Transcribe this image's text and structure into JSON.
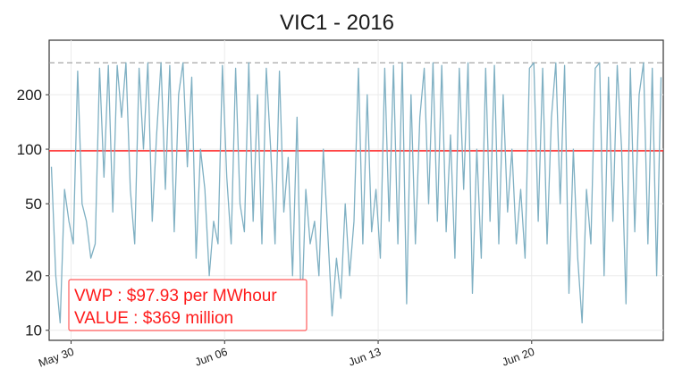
{
  "chart_data": {
    "type": "line",
    "title": "VIC1 - 2016",
    "xlabel": "",
    "ylabel": "",
    "x_range": [
      "2016-05-29",
      "2016-06-26"
    ],
    "x_ticks": [
      {
        "date": "2016-05-30",
        "label": "May 30"
      },
      {
        "date": "2016-06-06",
        "label": "Jun 06"
      },
      {
        "date": "2016-06-13",
        "label": "Jun 13"
      },
      {
        "date": "2016-06-20",
        "label": "Jun 20"
      }
    ],
    "y_scale": "log",
    "ylim": [
      8.8,
      400
    ],
    "y_ticks": [
      10,
      20,
      50,
      100,
      200
    ],
    "grid": true,
    "reference_lines": [
      {
        "kind": "dashed",
        "value": 300,
        "color": "#9e9e9e"
      },
      {
        "kind": "solid",
        "value": 97.93,
        "color": "#ff2a2a"
      }
    ],
    "series": [
      {
        "color": "#7fb0c3",
        "resolution": "half-hourly",
        "points": [
          [
            "2016-05-29",
            80
          ],
          [
            "2016-05-29",
            20
          ],
          [
            "2016-05-29",
            11
          ],
          [
            "2016-05-29",
            60
          ],
          [
            "2016-05-29",
            40
          ],
          [
            "2016-05-30",
            30
          ],
          [
            "2016-05-30",
            270
          ],
          [
            "2016-05-30",
            50
          ],
          [
            "2016-05-30",
            40
          ],
          [
            "2016-05-30",
            25
          ],
          [
            "2016-05-31",
            30
          ],
          [
            "2016-05-31",
            280
          ],
          [
            "2016-05-31",
            70
          ],
          [
            "2016-05-31",
            290
          ],
          [
            "2016-05-31",
            45
          ],
          [
            "2016-06-01",
            290
          ],
          [
            "2016-06-01",
            150
          ],
          [
            "2016-06-01",
            300
          ],
          [
            "2016-06-01",
            60
          ],
          [
            "2016-06-01",
            30
          ],
          [
            "2016-06-02",
            280
          ],
          [
            "2016-06-02",
            100
          ],
          [
            "2016-06-02",
            300
          ],
          [
            "2016-06-02",
            40
          ],
          [
            "2016-06-02",
            120
          ],
          [
            "2016-06-03",
            300
          ],
          [
            "2016-06-03",
            60
          ],
          [
            "2016-06-03",
            290
          ],
          [
            "2016-06-03",
            35
          ],
          [
            "2016-06-03",
            200
          ],
          [
            "2016-06-04",
            300
          ],
          [
            "2016-06-04",
            80
          ],
          [
            "2016-06-04",
            250
          ],
          [
            "2016-06-04",
            25
          ],
          [
            "2016-06-04",
            100
          ],
          [
            "2016-06-05",
            60
          ],
          [
            "2016-06-05",
            20
          ],
          [
            "2016-06-05",
            40
          ],
          [
            "2016-06-05",
            30
          ],
          [
            "2016-06-05",
            290
          ],
          [
            "2016-06-06",
            70
          ],
          [
            "2016-06-06",
            30
          ],
          [
            "2016-06-06",
            280
          ],
          [
            "2016-06-06",
            50
          ],
          [
            "2016-06-06",
            35
          ],
          [
            "2016-06-07",
            300
          ],
          [
            "2016-06-07",
            40
          ],
          [
            "2016-06-07",
            200
          ],
          [
            "2016-06-07",
            30
          ],
          [
            "2016-06-07",
            280
          ],
          [
            "2016-06-08",
            100
          ],
          [
            "2016-06-08",
            30
          ],
          [
            "2016-06-08",
            270
          ],
          [
            "2016-06-08",
            45
          ],
          [
            "2016-06-08",
            90
          ],
          [
            "2016-06-09",
            20
          ],
          [
            "2016-06-09",
            150
          ],
          [
            "2016-06-09",
            11
          ],
          [
            "2016-06-09",
            60
          ],
          [
            "2016-06-09",
            30
          ],
          [
            "2016-06-10",
            40
          ],
          [
            "2016-06-10",
            20
          ],
          [
            "2016-06-10",
            100
          ],
          [
            "2016-06-10",
            35
          ],
          [
            "2016-06-10",
            12
          ],
          [
            "2016-06-11",
            25
          ],
          [
            "2016-06-11",
            15
          ],
          [
            "2016-06-11",
            50
          ],
          [
            "2016-06-11",
            20
          ],
          [
            "2016-06-11",
            40
          ],
          [
            "2016-06-12",
            280
          ],
          [
            "2016-06-12",
            30
          ],
          [
            "2016-06-12",
            200
          ],
          [
            "2016-06-12",
            35
          ],
          [
            "2016-06-12",
            60
          ],
          [
            "2016-06-13",
            25
          ],
          [
            "2016-06-13",
            280
          ],
          [
            "2016-06-13",
            40
          ],
          [
            "2016-06-13",
            290
          ],
          [
            "2016-06-13",
            30
          ],
          [
            "2016-06-14",
            300
          ],
          [
            "2016-06-14",
            14
          ],
          [
            "2016-06-14",
            200
          ],
          [
            "2016-06-14",
            30
          ],
          [
            "2016-06-14",
            150
          ],
          [
            "2016-06-15",
            280
          ],
          [
            "2016-06-15",
            50
          ],
          [
            "2016-06-15",
            300
          ],
          [
            "2016-06-15",
            40
          ],
          [
            "2016-06-15",
            290
          ],
          [
            "2016-06-16",
            35
          ],
          [
            "2016-06-16",
            120
          ],
          [
            "2016-06-16",
            25
          ],
          [
            "2016-06-16",
            280
          ],
          [
            "2016-06-16",
            60
          ],
          [
            "2016-06-17",
            300
          ],
          [
            "2016-06-17",
            16
          ],
          [
            "2016-06-17",
            100
          ],
          [
            "2016-06-17",
            25
          ],
          [
            "2016-06-17",
            280
          ],
          [
            "2016-06-18",
            40
          ],
          [
            "2016-06-18",
            290
          ],
          [
            "2016-06-18",
            30
          ],
          [
            "2016-06-18",
            200
          ],
          [
            "2016-06-18",
            45
          ],
          [
            "2016-06-19",
            100
          ],
          [
            "2016-06-19",
            30
          ],
          [
            "2016-06-19",
            60
          ],
          [
            "2016-06-19",
            25
          ],
          [
            "2016-06-19",
            280
          ],
          [
            "2016-06-20",
            300
          ],
          [
            "2016-06-20",
            40
          ],
          [
            "2016-06-20",
            280
          ],
          [
            "2016-06-20",
            30
          ],
          [
            "2016-06-20",
            150
          ],
          [
            "2016-06-21",
            300
          ],
          [
            "2016-06-21",
            50
          ],
          [
            "2016-06-21",
            290
          ],
          [
            "2016-06-21",
            16
          ],
          [
            "2016-06-21",
            100
          ],
          [
            "2016-06-22",
            25
          ],
          [
            "2016-06-22",
            11
          ],
          [
            "2016-06-22",
            60
          ],
          [
            "2016-06-22",
            30
          ],
          [
            "2016-06-22",
            280
          ],
          [
            "2016-06-23",
            300
          ],
          [
            "2016-06-23",
            20
          ],
          [
            "2016-06-23",
            250
          ],
          [
            "2016-06-23",
            40
          ],
          [
            "2016-06-23",
            290
          ],
          [
            "2016-06-24",
            100
          ],
          [
            "2016-06-24",
            14
          ],
          [
            "2016-06-24",
            280
          ],
          [
            "2016-06-24",
            35
          ],
          [
            "2016-06-24",
            200
          ],
          [
            "2016-06-25",
            300
          ],
          [
            "2016-06-25",
            30
          ],
          [
            "2016-06-25",
            280
          ],
          [
            "2016-06-25",
            20
          ],
          [
            "2016-06-25",
            250
          ],
          [
            "2016-06-26",
            40
          ],
          [
            "2016-06-26",
            120
          ],
          [
            "2016-06-26",
            60
          ]
        ]
      }
    ],
    "annotation": {
      "line1": "VWP : $97.93 per MWhour",
      "line2": "VALUE : $369 million",
      "color": "#ff1a1a"
    }
  }
}
